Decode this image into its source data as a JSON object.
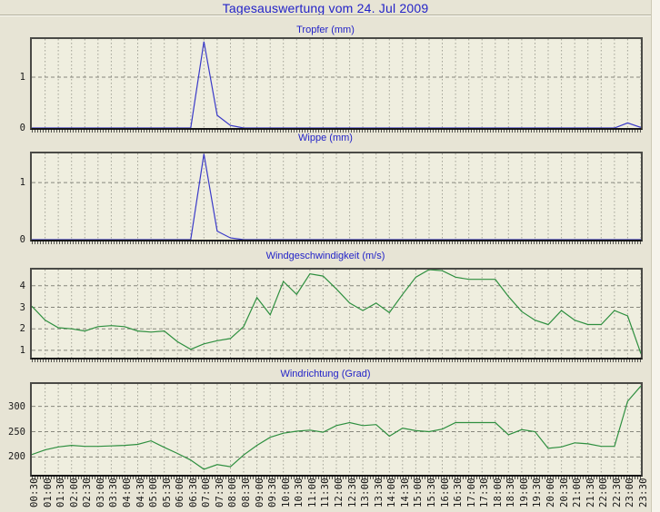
{
  "page": {
    "title": "Tagesauswertung vom 24. Jul 2009"
  },
  "colors": {
    "rain_line": "#3a3ac8",
    "wind_line": "#2e8f3f",
    "title_blue": "#2323c8"
  },
  "chart_data": {
    "type": "line",
    "categories": [
      "00:30",
      "01:00",
      "01:30",
      "02:00",
      "02:30",
      "03:00",
      "03:30",
      "04:00",
      "04:30",
      "05:00",
      "05:30",
      "06:00",
      "06:30",
      "07:00",
      "07:30",
      "08:00",
      "08:30",
      "09:00",
      "09:30",
      "10:00",
      "10:30",
      "11:00",
      "11:30",
      "12:00",
      "12:30",
      "13:00",
      "13:30",
      "14:00",
      "14:30",
      "15:00",
      "15:30",
      "16:00",
      "16:30",
      "17:00",
      "17:30",
      "18:00",
      "18:30",
      "19:00",
      "19:30",
      "20:00",
      "20:30",
      "21:00",
      "21:30",
      "22:00",
      "22:30",
      "23:00",
      "23:30"
    ],
    "grid": "dashed",
    "legend": "none",
    "charts": [
      {
        "title": "Tropfer (mm)",
        "line_color": "#3a3ac8",
        "y_ticks": [
          0,
          1
        ],
        "y_min": 0,
        "y_max": 1.75,
        "values": [
          0,
          0,
          0,
          0,
          0,
          0,
          0,
          0,
          0,
          0,
          0,
          0,
          0,
          1.7,
          0.25,
          0.05,
          0,
          0,
          0,
          0,
          0,
          0,
          0,
          0,
          0,
          0,
          0,
          0,
          0,
          0,
          0,
          0,
          0,
          0,
          0,
          0,
          0,
          0,
          0,
          0,
          0,
          0,
          0,
          0,
          0,
          0.1,
          0.01
        ]
      },
      {
        "title": "Wippe (mm)",
        "line_color": "#3a3ac8",
        "y_ticks": [
          0,
          1
        ],
        "y_min": 0,
        "y_max": 1.51,
        "values": [
          0,
          0,
          0,
          0,
          0,
          0,
          0,
          0,
          0,
          0,
          0,
          0,
          0,
          1.5,
          0.15,
          0.03,
          0,
          0,
          0,
          0,
          0,
          0,
          0,
          0,
          0,
          0,
          0,
          0,
          0,
          0,
          0,
          0,
          0,
          0,
          0,
          0,
          0,
          0,
          0,
          0,
          0,
          0,
          0,
          0,
          0,
          0,
          0
        ]
      },
      {
        "title": "Windgeschwindigkeit (m/s)",
        "line_color": "#2e8f3f",
        "y_ticks": [
          1,
          2,
          3,
          4
        ],
        "y_min": 0.66,
        "y_max": 4.75,
        "values": [
          3.05,
          2.4,
          2.05,
          2.0,
          1.9,
          2.1,
          2.15,
          2.1,
          1.9,
          1.85,
          1.9,
          1.4,
          1.05,
          1.3,
          1.45,
          1.55,
          2.1,
          3.45,
          2.65,
          4.2,
          3.6,
          4.55,
          4.45,
          3.85,
          3.2,
          2.85,
          3.2,
          2.75,
          3.6,
          4.4,
          4.75,
          4.7,
          4.4,
          4.3,
          4.3,
          4.3,
          3.5,
          2.8,
          2.4,
          2.2,
          2.85,
          2.4,
          2.2,
          2.2,
          2.85,
          2.6,
          0.85
        ]
      },
      {
        "title": "Windrichtung (Grad)",
        "line_color": "#2e8f3f",
        "y_ticks": [
          200,
          250,
          300
        ],
        "y_min": 165,
        "y_max": 344,
        "values": [
          205,
          214,
          220,
          223,
          221,
          221,
          222,
          223,
          225,
          232,
          219,
          207,
          194,
          176,
          185,
          181,
          204,
          223,
          239,
          247,
          251,
          253,
          249,
          262,
          268,
          262,
          264,
          241,
          257,
          252,
          250,
          255,
          268,
          268,
          268,
          268,
          244,
          254,
          250,
          217,
          220,
          228,
          226,
          221,
          221,
          310,
          340
        ]
      }
    ]
  }
}
